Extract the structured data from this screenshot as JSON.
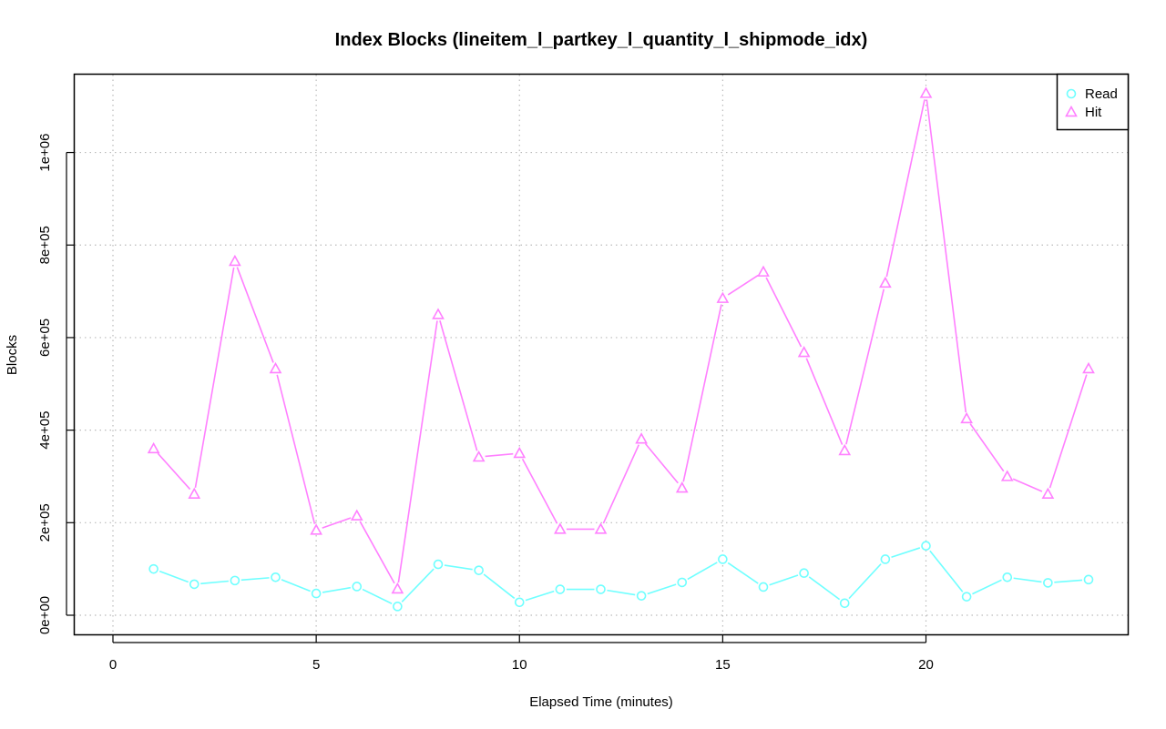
{
  "chart_data": {
    "type": "line",
    "title": "Index Blocks (lineitem_l_partkey_l_quantity_l_shipmode_idx)",
    "xlabel": "Elapsed Time (minutes)",
    "ylabel": "Blocks",
    "xlim": [
      0,
      24
    ],
    "ylim": [
      0,
      1125000
    ],
    "x_ticks": [
      0,
      5,
      10,
      15,
      20
    ],
    "x_tick_labels": [
      "0",
      "5",
      "10",
      "15",
      "20"
    ],
    "y_ticks": [
      0,
      200000,
      400000,
      600000,
      800000,
      1000000
    ],
    "y_tick_labels": [
      "0e+00",
      "2e+05",
      "4e+05",
      "6e+05",
      "8e+05",
      "1e+06"
    ],
    "grid": true,
    "legend_position": "top-right",
    "x": [
      1,
      2,
      3,
      4,
      5,
      6,
      7,
      8,
      9,
      10,
      11,
      12,
      13,
      14,
      15,
      16,
      17,
      18,
      19,
      20,
      21,
      22,
      23,
      24
    ],
    "series": [
      {
        "name": "Read",
        "marker": "circle",
        "color": "#6FFFFF",
        "values": [
          100000,
          67000,
          75000,
          82000,
          47000,
          62000,
          19000,
          110000,
          97000,
          28000,
          56000,
          56000,
          42000,
          71000,
          121000,
          61000,
          91000,
          26000,
          121000,
          150000,
          40000,
          82000,
          70000,
          77000
        ]
      },
      {
        "name": "Hit",
        "marker": "triangle",
        "color": "#FF80FF",
        "values": [
          360000,
          262000,
          765000,
          533000,
          184000,
          215000,
          57000,
          650000,
          342000,
          350000,
          186000,
          186000,
          381000,
          275000,
          685000,
          742000,
          568000,
          356000,
          718000,
          1128000,
          425000,
          300000,
          262000,
          533000
        ]
      }
    ]
  }
}
